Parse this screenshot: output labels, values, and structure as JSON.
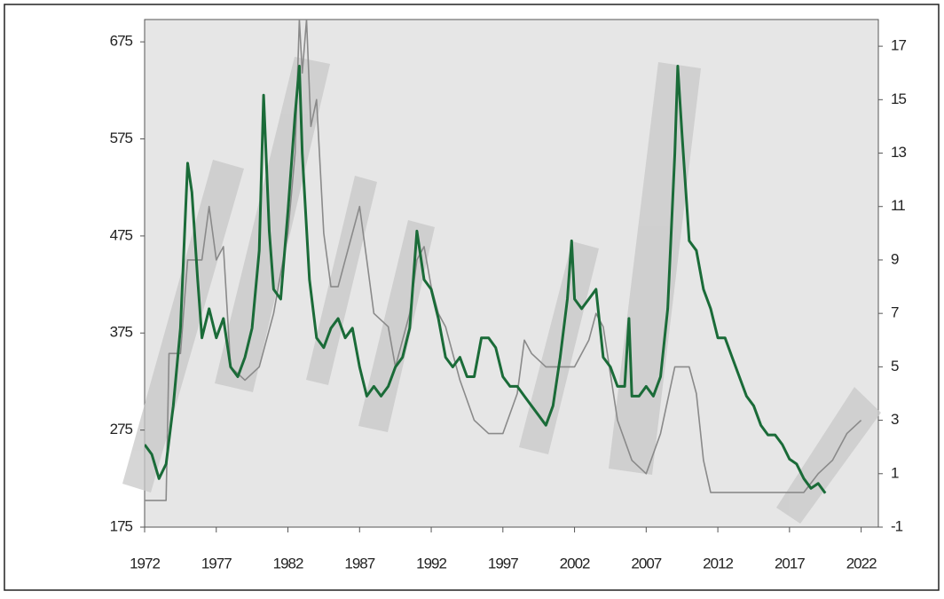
{
  "chart_data": {
    "type": "line",
    "xlim": [
      1972,
      2023.2
    ],
    "xticks": [
      1972,
      1977,
      1982,
      1987,
      1992,
      1997,
      2002,
      2007,
      2012,
      2017,
      2022
    ],
    "ylim": [
      175,
      698
    ],
    "yticks": [
      175,
      275,
      375,
      475,
      575,
      675
    ],
    "y2lim": [
      -1,
      18
    ],
    "y2ticks": [
      -1,
      1,
      3,
      5,
      7,
      9,
      11,
      13,
      15,
      17
    ],
    "series": [
      {
        "color": "#1a6b38",
        "x": [
          1972,
          1972.5,
          1973,
          1973.5,
          1974,
          1974.5,
          1975,
          1975.3,
          1975.7,
          1976,
          1976.5,
          1977,
          1977.5,
          1978,
          1978.5,
          1979,
          1979.5,
          1980,
          1980.3,
          1980.7,
          1981,
          1981.5,
          1982,
          1982.5,
          1982.8,
          1983,
          1983.5,
          1984,
          1984.5,
          1985,
          1985.5,
          1986,
          1986.5,
          1987,
          1987.5,
          1988,
          1988.5,
          1989,
          1989.5,
          1990,
          1990.5,
          1991,
          1991.5,
          1992,
          1992.5,
          1993,
          1993.5,
          1994,
          1994.5,
          1995,
          1995.5,
          1996,
          1996.5,
          1997,
          1997.5,
          1998,
          1998.5,
          1999,
          1999.5,
          2000,
          2000.5,
          2001,
          2001.5,
          2001.8,
          2002,
          2002.5,
          2003,
          2003.5,
          2004,
          2004.5,
          2005,
          2005.5,
          2005.8,
          2006,
          2006.5,
          2007,
          2007.5,
          2008,
          2008.5,
          2009,
          2009.2,
          2009.5,
          2010,
          2010.5,
          2011,
          2011.5,
          2012,
          2012.5,
          2013,
          2013.5,
          2014,
          2014.5,
          2015,
          2015.5,
          2016,
          2016.5,
          2017,
          2017.5,
          2018,
          2018.5,
          2019,
          2019.5
        ],
        "values": [
          260,
          250,
          225,
          240,
          300,
          380,
          550,
          520,
          430,
          370,
          400,
          370,
          390,
          340,
          330,
          350,
          380,
          460,
          620,
          480,
          420,
          410,
          500,
          600,
          650,
          560,
          430,
          370,
          360,
          380,
          390,
          370,
          380,
          340,
          310,
          320,
          310,
          320,
          340,
          350,
          380,
          480,
          430,
          420,
          390,
          350,
          340,
          350,
          330,
          330,
          370,
          370,
          360,
          330,
          320,
          320,
          310,
          300,
          290,
          280,
          300,
          350,
          410,
          470,
          410,
          400,
          410,
          420,
          350,
          340,
          320,
          320,
          390,
          310,
          310,
          320,
          310,
          330,
          400,
          560,
          650,
          580,
          470,
          460,
          420,
          400,
          370,
          370,
          350,
          330,
          310,
          300,
          280,
          270,
          270,
          260,
          245,
          240,
          225,
          215,
          220,
          210
        ]
      },
      {
        "color": "#8a8a8a",
        "axis": "y2",
        "x": [
          1972,
          1973.5,
          1973.7,
          1974.5,
          1975,
          1976,
          1976.5,
          1977,
          1977.5,
          1978,
          1979,
          1980,
          1981,
          1982,
          1982.5,
          1982.8,
          1983,
          1983.3,
          1983.6,
          1984,
          1984.5,
          1985,
          1985.5,
          1986,
          1987,
          1987.5,
          1988,
          1989,
          1989.5,
          1990,
          1990.5,
          1991,
          1991.5,
          1992,
          1992.5,
          1993,
          1994,
          1995,
          1996,
          1997,
          1998,
          1998.5,
          1999,
          2000,
          2001,
          2002,
          2003,
          2003.5,
          2004,
          2005,
          2006,
          2007,
          2008,
          2009,
          2010,
          2010.5,
          2011,
          2011.5,
          2018,
          2019,
          2020,
          2021,
          2022
        ],
        "values": [
          0,
          0,
          5.5,
          5.5,
          9,
          9,
          11,
          9,
          9.5,
          5,
          4.5,
          5,
          7,
          10,
          13,
          18,
          16,
          18,
          14,
          15,
          10,
          8,
          8,
          9,
          11,
          9,
          7,
          6.5,
          5,
          6,
          7,
          9,
          9.5,
          8,
          7,
          6.5,
          4.5,
          3,
          2.5,
          2.5,
          4,
          6,
          5.5,
          5,
          5,
          5,
          6,
          7,
          6.5,
          3,
          1.5,
          1,
          2.5,
          5,
          5,
          4,
          1.5,
          0.3,
          0.3,
          1,
          1.5,
          2.5,
          3
        ]
      }
    ]
  }
}
